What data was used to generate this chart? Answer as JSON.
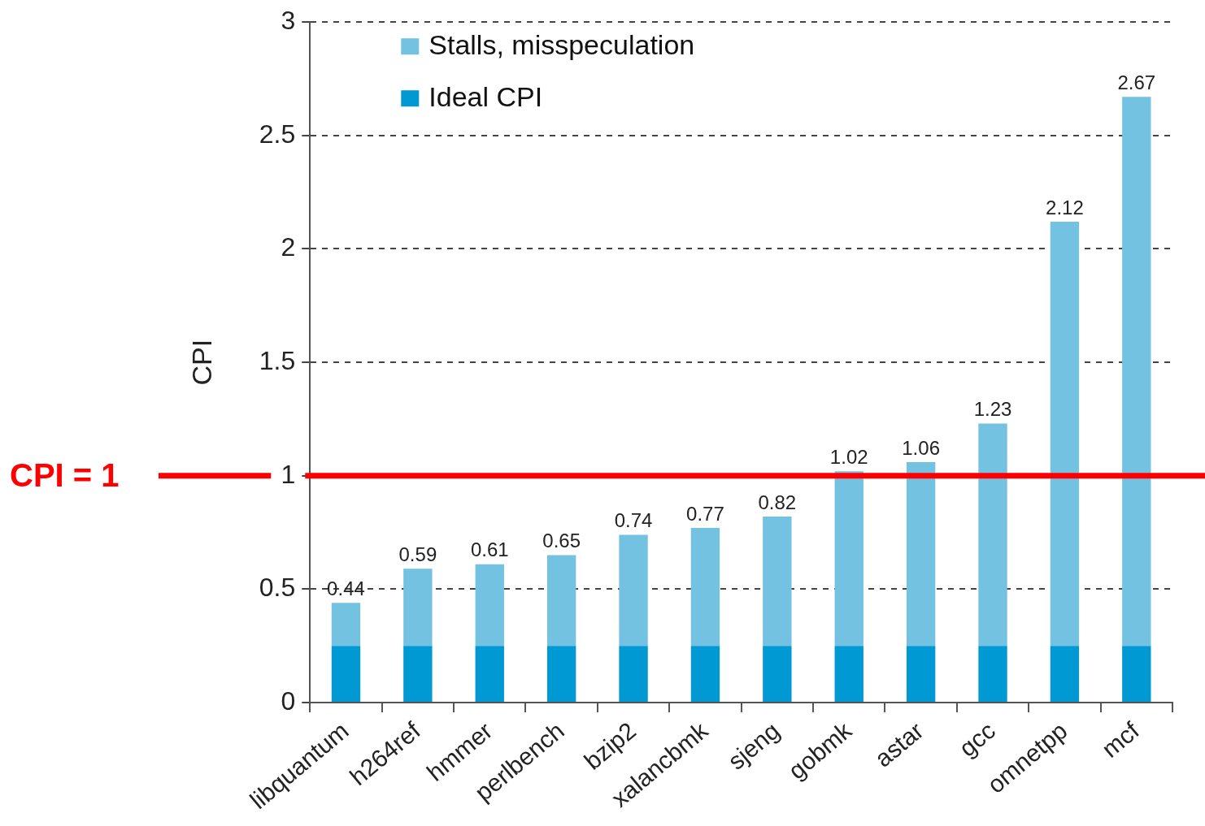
{
  "chart_data": {
    "type": "bar",
    "stacked": true,
    "ylabel": "CPI",
    "categories": [
      "libquantum",
      "h264ref",
      "hmmer",
      "perlbench",
      "bzip2",
      "xalancbmk",
      "sjeng",
      "gobmk",
      "astar",
      "gcc",
      "omnetpp",
      "mcf"
    ],
    "series": [
      {
        "name": "Ideal CPI",
        "color": "#0099d3",
        "values": [
          0.25,
          0.25,
          0.25,
          0.25,
          0.25,
          0.25,
          0.25,
          0.25,
          0.25,
          0.25,
          0.25,
          0.25
        ]
      },
      {
        "name": "Stalls, misspeculation",
        "color": "#74c2e1",
        "values": [
          0.19,
          0.34,
          0.36,
          0.4,
          0.49,
          0.52,
          0.57,
          0.77,
          0.81,
          0.98,
          1.87,
          2.42
        ]
      }
    ],
    "totals": [
      "0.44",
      "0.59",
      "0.61",
      "0.65",
      "0.74",
      "0.77",
      "0.82",
      "1.02",
      "1.06",
      "1.23",
      "2.12",
      "2.67"
    ],
    "ylim": [
      0,
      3
    ],
    "yticks": [
      0,
      0.5,
      1,
      1.5,
      2,
      2.5,
      3
    ],
    "grid": "y",
    "legend": "top left",
    "ref_lines": [
      {
        "axis": "y",
        "value": 1,
        "label": "CPI = 1",
        "color": "#ff0000"
      }
    ]
  }
}
